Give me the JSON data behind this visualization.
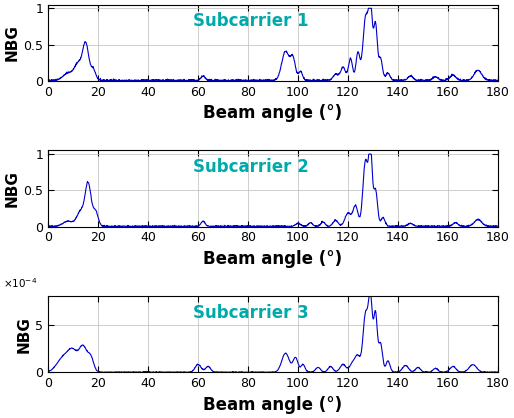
{
  "subcarrier_labels": [
    "Subcarrier 1",
    "Subcarrier 2",
    "Subcarrier 3"
  ],
  "xlabel": "Beam angle (°)",
  "ylabel": "NBG",
  "line_color": "#0000CD",
  "label_color": "#00AAAA",
  "x_min": 0,
  "x_max": 180,
  "x_ticks": [
    0,
    20,
    40,
    60,
    80,
    100,
    120,
    140,
    160,
    180
  ],
  "subplot12_ylim": [
    0,
    1.05
  ],
  "subplot12_yticks": [
    0,
    0.5,
    1.0
  ],
  "subplot3_ylim": [
    0,
    0.0008
  ],
  "subplot3_yticks": [
    0,
    0.0005
  ],
  "label_fontsize": 11,
  "tick_fontsize": 9,
  "subcarrier_fontsize": 12,
  "xlabel_fontsize": 12
}
